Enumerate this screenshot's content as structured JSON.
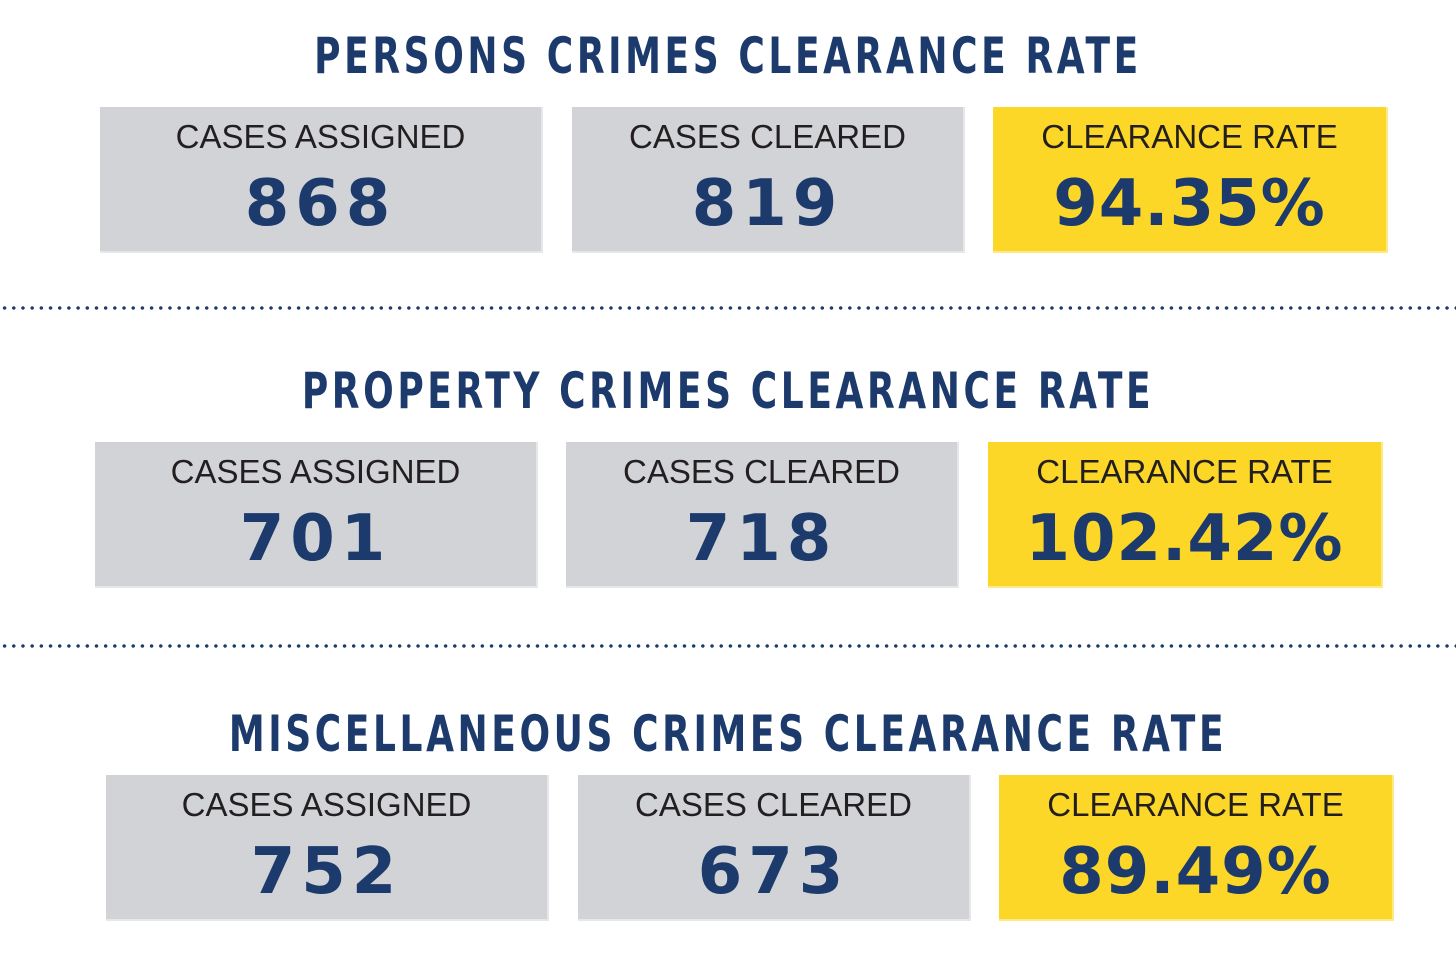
{
  "sections": [
    {
      "title": "PERSONS CRIMES CLEARANCE RATE",
      "assigned": {
        "label": "CASES ASSIGNED",
        "value": "868"
      },
      "cleared": {
        "label": "CASES CLEARED",
        "value": "819"
      },
      "rate": {
        "label": "CLEARANCE RATE",
        "value": "94.35%"
      }
    },
    {
      "title": "PROPERTY CRIMES CLEARANCE RATE",
      "assigned": {
        "label": "CASES ASSIGNED",
        "value": "701"
      },
      "cleared": {
        "label": "CASES CLEARED",
        "value": "718"
      },
      "rate": {
        "label": "CLEARANCE RATE",
        "value": "102.42%"
      }
    },
    {
      "title": "MISCELLANEOUS CRIMES CLEARANCE RATE",
      "assigned": {
        "label": "CASES ASSIGNED",
        "value": "752"
      },
      "cleared": {
        "label": "CASES CLEARED",
        "value": "673"
      },
      "rate": {
        "label": "CLEARANCE RATE",
        "value": "89.49%"
      }
    }
  ],
  "colors": {
    "title": "#1c3a6b",
    "value": "#1c3a6b",
    "label": "#231f20",
    "gray_box": "#d1d3d6",
    "rate_box": "#fcd728",
    "divider": "#1c3a6b"
  }
}
